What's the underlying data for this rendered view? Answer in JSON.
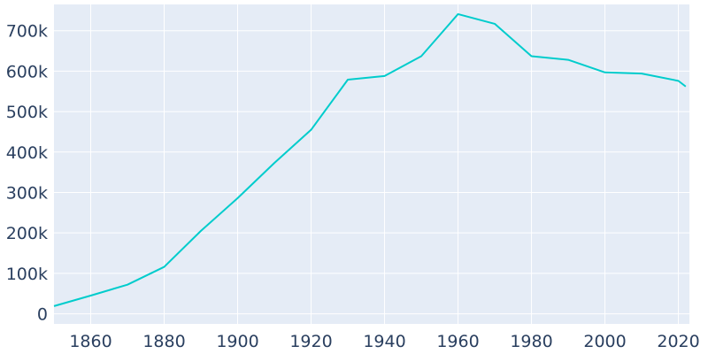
{
  "colors": {
    "plot_background": "#e5ecf6",
    "grid": "#ffffff",
    "line": "#00cccc",
    "tick_text": "#2a3f5f"
  },
  "chart_data": {
    "type": "line",
    "title": "",
    "xlabel": "",
    "ylabel": "",
    "grid": true,
    "legend": "none",
    "xlim": [
      1850,
      2023
    ],
    "ylim": [
      -25000,
      765000
    ],
    "x_ticks": [
      1860,
      1880,
      1900,
      1920,
      1940,
      1960,
      1980,
      2000,
      2020
    ],
    "y_ticks": [
      0,
      100000,
      200000,
      300000,
      400000,
      500000,
      600000,
      700000
    ],
    "y_tick_labels": [
      "0",
      "100k",
      "200k",
      "300k",
      "400k",
      "500k",
      "600k",
      "700k"
    ],
    "series": [
      {
        "x": [
          1850,
          1860,
          1870,
          1880,
          1890,
          1900,
          1910,
          1920,
          1930,
          1940,
          1950,
          1960,
          1970,
          1980,
          1990,
          2000,
          2010,
          2020,
          2022
        ],
        "values": [
          19000,
          45000,
          72000,
          116000,
          205000,
          286000,
          373000,
          455000,
          579000,
          588000,
          637000,
          741000,
          717000,
          637000,
          628000,
          597000,
          594000,
          576000,
          562000
        ]
      }
    ]
  }
}
